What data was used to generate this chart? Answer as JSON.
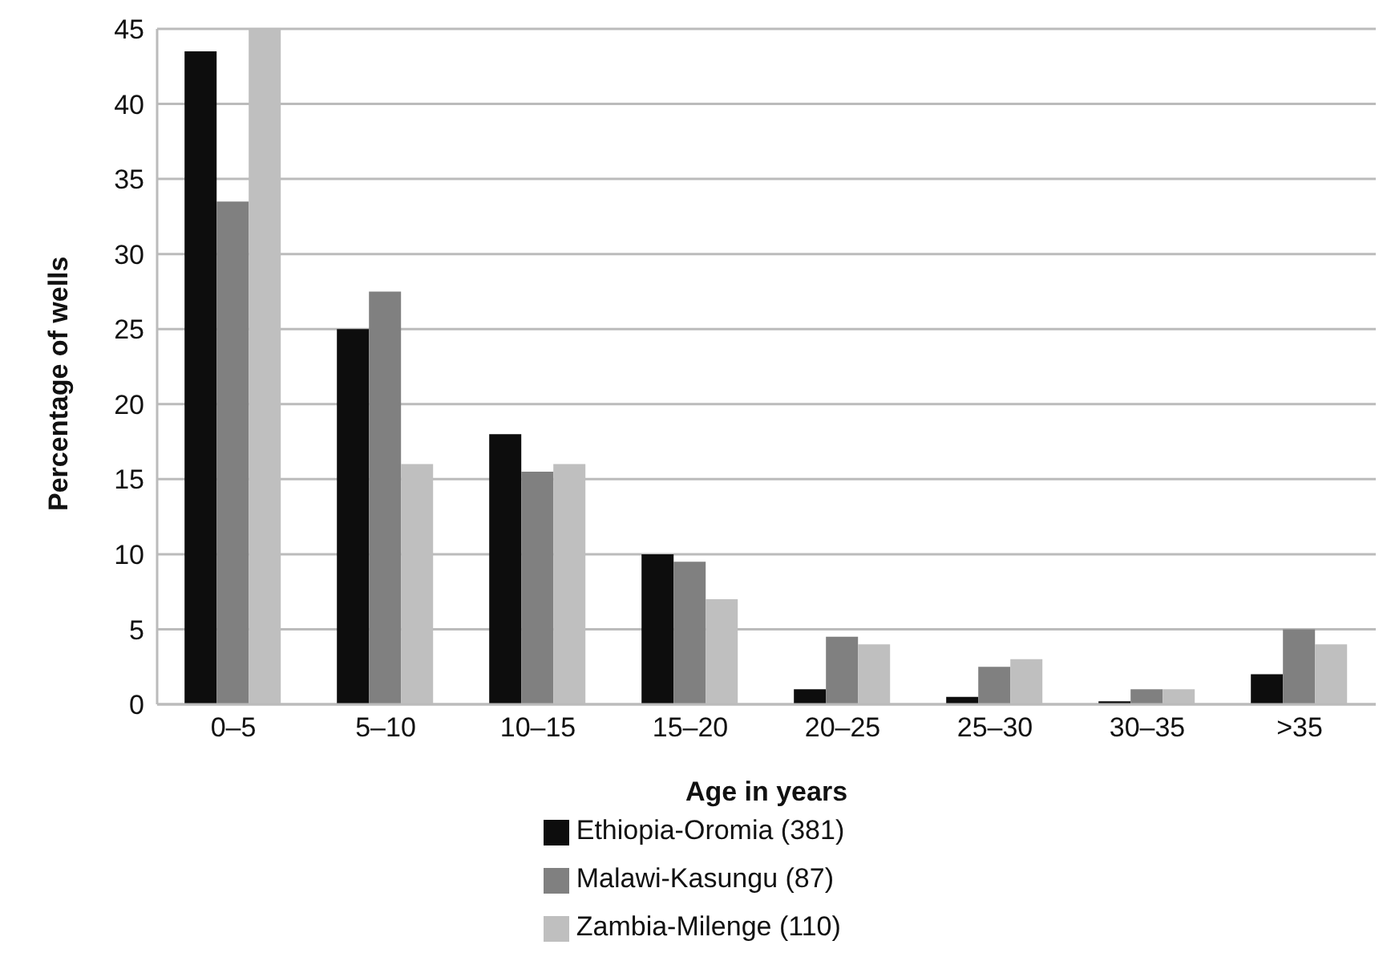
{
  "chart_data": {
    "type": "bar",
    "xlabel": "Age in years",
    "ylabel": "Percentage of wells",
    "categories": [
      "0–5",
      "5–10",
      "10–15",
      "15–20",
      "20–25",
      "25–30",
      "30–35",
      ">35"
    ],
    "series": [
      {
        "name": "Ethiopia-Oromia (381)",
        "color": "#0d0d0d",
        "values": [
          43.5,
          25,
          18,
          10,
          1,
          0.5,
          0.2,
          2
        ]
      },
      {
        "name": "Malawi-Kasungu (87)",
        "color": "#808080",
        "values": [
          33.5,
          27.5,
          15.5,
          9.5,
          4.5,
          2.5,
          1,
          5
        ]
      },
      {
        "name": "Zambia-Milenge (110)",
        "color": "#bfbfbf",
        "values": [
          45,
          16,
          16,
          7,
          4,
          3,
          1,
          4
        ]
      }
    ],
    "ylim": [
      0,
      45
    ],
    "yticks": [
      0,
      5,
      10,
      15,
      20,
      25,
      30,
      35,
      40,
      45
    ],
    "grid": "y",
    "legend": "bottom"
  }
}
